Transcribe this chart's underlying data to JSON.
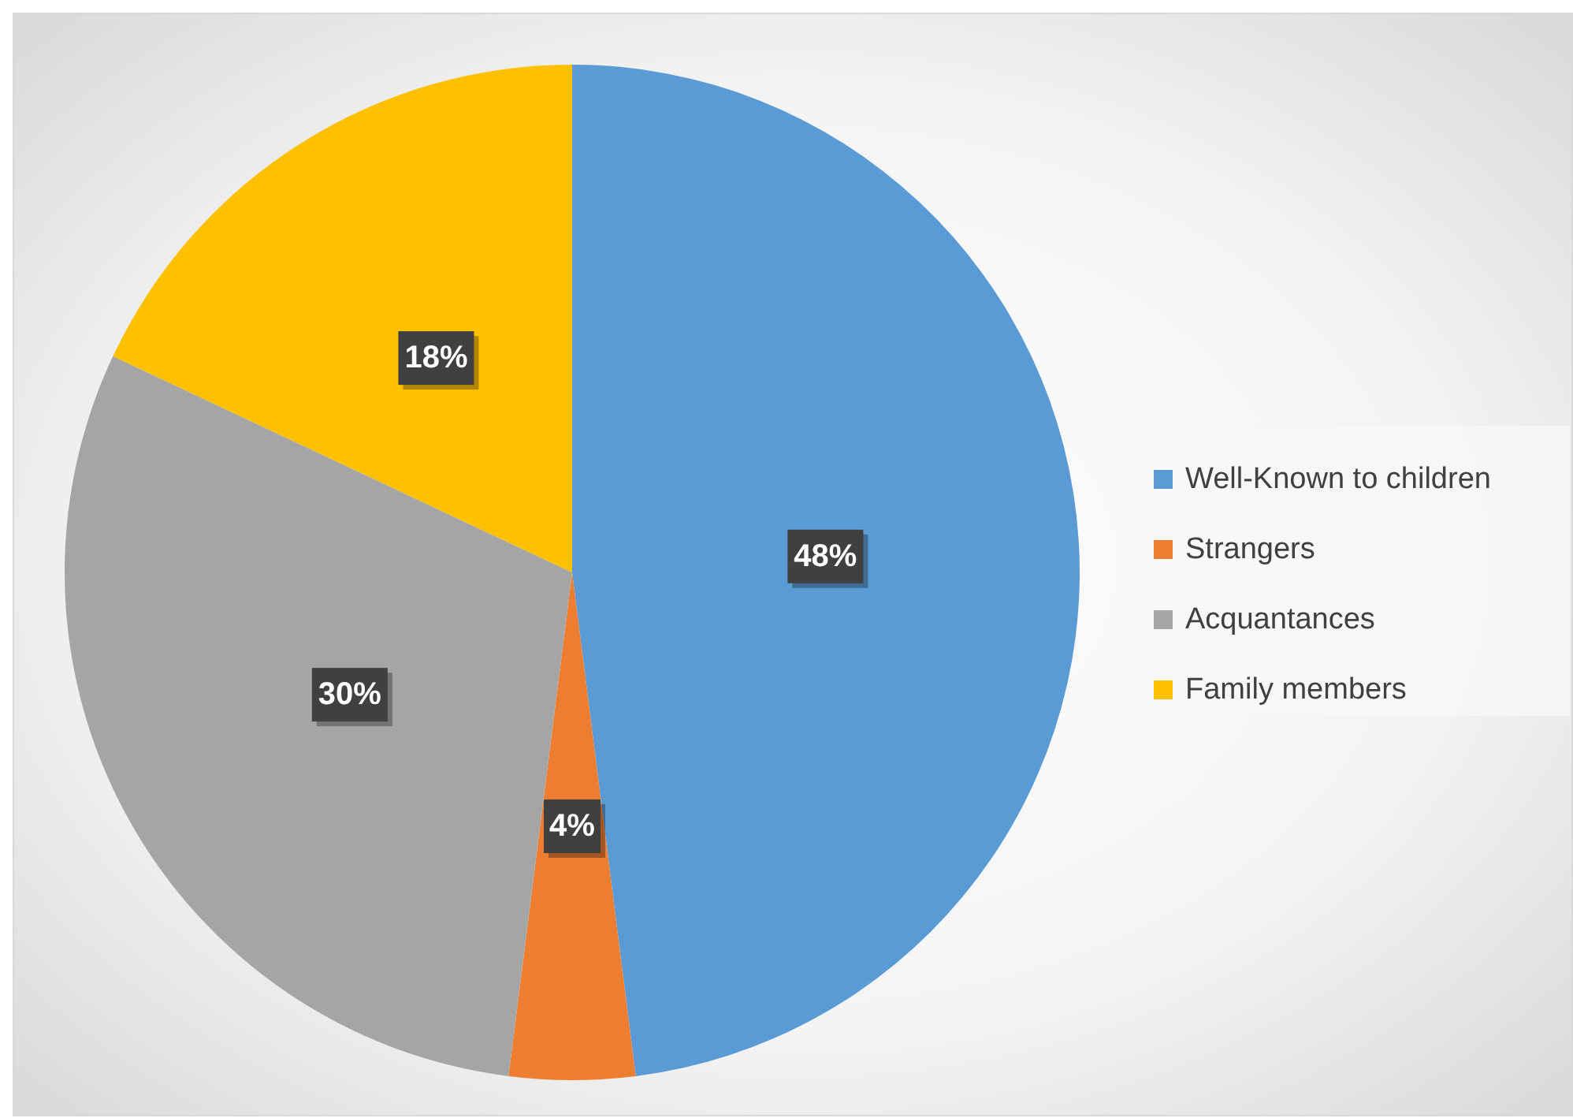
{
  "chart_data": {
    "type": "pie",
    "categories": [
      "Well-Known to children",
      "Strangers",
      "Acquantances",
      "Family members"
    ],
    "values": [
      48,
      4,
      30,
      18
    ],
    "colors": [
      "#5b9bd5",
      "#ed7d31",
      "#a5a5a5",
      "#ffc000"
    ],
    "value_labels": [
      "48%",
      "4%",
      "30%",
      "18%"
    ],
    "legend": "right"
  }
}
